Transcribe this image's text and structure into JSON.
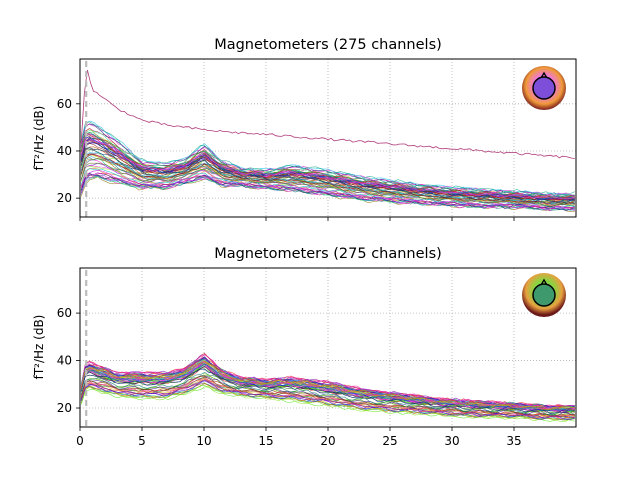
{
  "chart_data": [
    {
      "type": "line",
      "title": "Magnetometers (275 channels)",
      "xlabel": "",
      "ylabel": "fT²/Hz (dB)",
      "xlim": [
        0,
        40
      ],
      "ylim": [
        12,
        79
      ],
      "xticks": [
        0,
        5,
        10,
        15,
        20,
        25,
        30,
        35
      ],
      "yticks": [
        20,
        40,
        60
      ],
      "x_tick_labels_visible": false,
      "grid": true,
      "vline_x": 0.5,
      "vline_style": "dashed gray",
      "inset": "sensor-layout head topomap, top-right",
      "channel_count": 275,
      "series": [
        {
          "role": "channel-envelope-upper",
          "x": [
            0.1,
            0.5,
            1.5,
            3,
            5,
            7,
            8.5,
            10,
            11.5,
            13,
            15,
            17,
            20,
            23,
            26,
            29,
            32,
            35,
            38,
            39.9
          ],
          "values": [
            44,
            54,
            51,
            45,
            36,
            35,
            37,
            43,
            36,
            33,
            32,
            34,
            32,
            29,
            27,
            25,
            24,
            23,
            22,
            22
          ]
        },
        {
          "role": "channel-envelope-lower",
          "x": [
            0.1,
            0.5,
            1.5,
            3,
            5,
            7,
            8.5,
            10,
            11.5,
            13,
            15,
            17,
            20,
            23,
            26,
            29,
            32,
            35,
            38,
            39.9
          ],
          "values": [
            21,
            27,
            28,
            26,
            24,
            24,
            26,
            28,
            25,
            25,
            24,
            23,
            21,
            19,
            18,
            17,
            16,
            16,
            15,
            15
          ]
        },
        {
          "role": "outlier-channel",
          "x": [
            0.1,
            0.5,
            1,
            2,
            3,
            5,
            7,
            10,
            12,
            15,
            20,
            25,
            30,
            35,
            39.9
          ],
          "values": [
            44,
            76,
            66,
            62,
            58,
            53,
            51,
            49,
            48,
            47,
            45,
            43,
            41,
            39,
            37
          ]
        }
      ]
    },
    {
      "type": "line",
      "title": "Magnetometers (275 channels)",
      "xlabel": "",
      "ylabel": "fT²/Hz (dB)",
      "xlim": [
        0,
        40
      ],
      "ylim": [
        12,
        79
      ],
      "xticks": [
        0,
        5,
        10,
        15,
        20,
        25,
        30,
        35
      ],
      "yticks": [
        20,
        40,
        60
      ],
      "x_tick_labels_visible": true,
      "grid": true,
      "vline_x": 0.5,
      "vline_style": "dashed gray",
      "inset": "sensor-layout head topomap, top-right",
      "channel_count": 275,
      "series": [
        {
          "role": "channel-envelope-upper",
          "x": [
            0.1,
            0.5,
            1.5,
            3,
            5,
            7,
            8.5,
            10,
            11.5,
            13,
            15,
            17,
            20,
            23,
            26,
            29,
            32,
            35,
            38,
            39.9
          ],
          "values": [
            30,
            40,
            38,
            35,
            35,
            35,
            37,
            43,
            36,
            33,
            32,
            33,
            31,
            28,
            26,
            24,
            23,
            22,
            21,
            21
          ]
        },
        {
          "role": "channel-envelope-lower",
          "x": [
            0.1,
            0.5,
            1.5,
            3,
            5,
            7,
            8.5,
            10,
            11.5,
            13,
            15,
            17,
            20,
            23,
            26,
            29,
            32,
            35,
            38,
            39.9
          ],
          "values": [
            22,
            28,
            27,
            25,
            24,
            24,
            26,
            29,
            26,
            25,
            24,
            23,
            21,
            19,
            18,
            17,
            16,
            16,
            15,
            15
          ]
        }
      ]
    }
  ]
}
